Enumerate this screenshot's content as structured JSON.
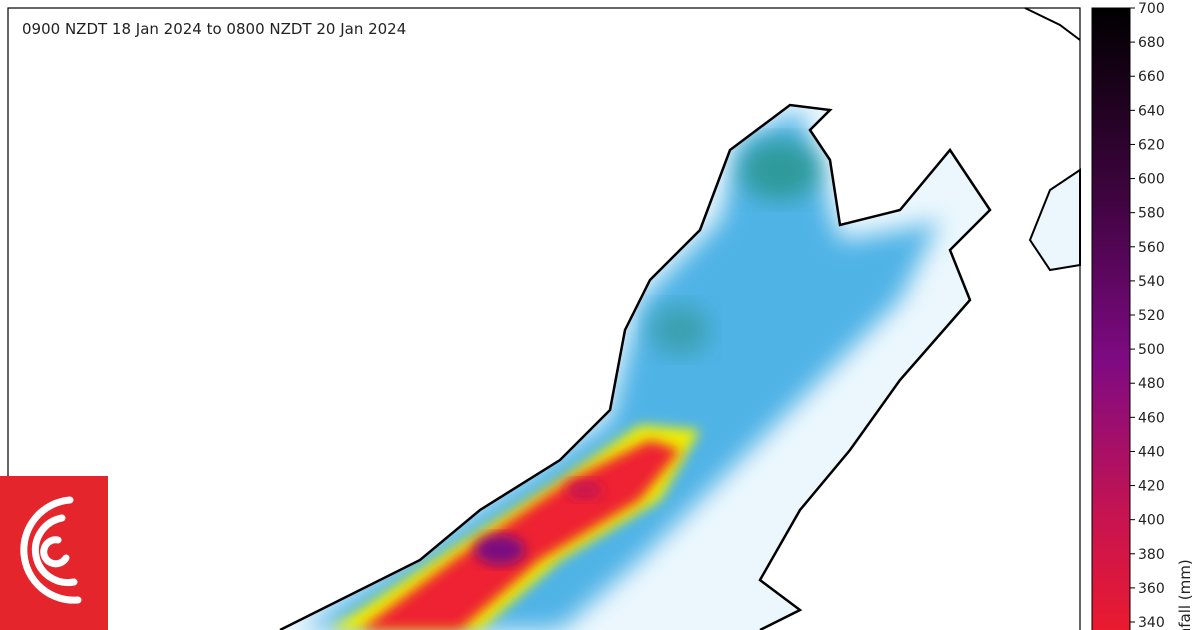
{
  "header": {
    "period": "0900 NZDT  18 Jan 2024 to 0800 NZDT  20 Jan 2024"
  },
  "colorbar": {
    "label": "Rainfall (mm)",
    "lim": [
      340,
      700
    ],
    "ticks": [
      340,
      360,
      380,
      400,
      420,
      440,
      460,
      480,
      500,
      520,
      540,
      560,
      580,
      600,
      620,
      640,
      660,
      680,
      700
    ]
  }
}
